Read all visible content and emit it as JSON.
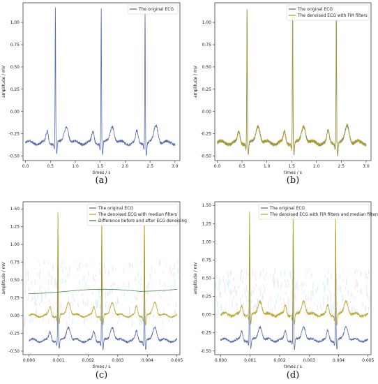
{
  "colors": {
    "original": "#4c63a8",
    "denoised": "#b5a11c",
    "difference": "#2e7d32",
    "noise_tint": "#ff66cc",
    "cyan_tint": "#00c8dc"
  },
  "chart_data": [
    {
      "panel": "a",
      "type": "line",
      "caption": "(a)",
      "xlabel": "times / s",
      "ylabel": "amplitude / mV",
      "xlim": [
        -0.05,
        3.1
      ],
      "ylim": [
        -0.55,
        1.22
      ],
      "xticks": [
        "0.0",
        "0.5",
        "1.0",
        "1.5",
        "2.0",
        "2.5",
        "3.0"
      ],
      "xtick_values": [
        0.0,
        0.5,
        1.0,
        1.5,
        2.0,
        2.5,
        3.0
      ],
      "yticks": [
        "-0.50",
        "-0.25",
        "0.00",
        "0.25",
        "0.50",
        "0.75",
        "1.00"
      ],
      "ytick_values": [
        -0.5,
        -0.25,
        0.0,
        0.25,
        0.5,
        0.75,
        1.0
      ],
      "legend_position": "top-right",
      "beats": [
        0.6,
        1.52,
        2.4
      ],
      "series": [
        {
          "name": "The original ECG",
          "color_key": "original",
          "baseline": -0.35,
          "peak": 1.16,
          "noise": 0.015
        }
      ]
    },
    {
      "panel": "b",
      "type": "line",
      "caption": "(b)",
      "xlabel": "times / s",
      "ylabel": "amplitude / mV",
      "xlim": [
        -0.05,
        3.1
      ],
      "ylim": [
        -0.55,
        1.22
      ],
      "xticks": [
        "0.0",
        "0.5",
        "1.0",
        "1.5",
        "2.0",
        "2.5",
        "3.0"
      ],
      "xtick_values": [
        0.0,
        0.5,
        1.0,
        1.5,
        2.0,
        2.5,
        3.0
      ],
      "yticks": [
        "-0.50",
        "-0.25",
        "0.00",
        "0.25",
        "0.50",
        "0.75",
        "1.00"
      ],
      "ytick_values": [
        -0.5,
        -0.25,
        0.0,
        0.25,
        0.5,
        0.75,
        1.0
      ],
      "legend_position": "top-right",
      "beats": [
        0.6,
        1.52,
        2.4
      ],
      "series": [
        {
          "name": "The original ECG",
          "color_key": "original",
          "baseline": -0.35,
          "peak": 1.16,
          "noise": 0.015
        },
        {
          "name": "The denoised ECG with FIR filters",
          "color_key": "denoised",
          "baseline": -0.35,
          "peak": 1.16,
          "noise": 0.02
        }
      ]
    },
    {
      "panel": "c",
      "type": "line",
      "caption": "(c)",
      "xlabel": "times / s",
      "ylabel": "amplitude / mV",
      "xlim": [
        -0.0002,
        0.0051
      ],
      "ylim": [
        -0.55,
        1.6
      ],
      "xticks": [
        "0.000",
        "0.001",
        "0.002",
        "0.003",
        "0.004",
        "0.005"
      ],
      "xtick_values": [
        0.0,
        0.001,
        0.002,
        0.003,
        0.004,
        0.005
      ],
      "yticks": [
        "-0.50",
        "-0.25",
        "0.00",
        "0.25",
        "0.50",
        "0.75",
        "1.00",
        "1.25",
        "1.50"
      ],
      "ytick_values": [
        -0.5,
        -0.25,
        0.0,
        0.25,
        0.5,
        0.75,
        1.0,
        1.25,
        1.5
      ],
      "legend_position": "top-right",
      "beats": [
        0.00098,
        0.00246,
        0.0039
      ],
      "series": [
        {
          "name": "The original ECG",
          "color_key": "original",
          "baseline": -0.35,
          "peak": 1.15,
          "noise": 0.015
        },
        {
          "name": "The denoised ECG with median filters",
          "color_key": "denoised",
          "baseline": 0.0,
          "peak": 1.5,
          "noise": 0.012
        },
        {
          "name": "Difference before and after ECG denoising",
          "color_key": "difference",
          "baseline": 0.34,
          "peak": 0.34,
          "noise": 0.0
        }
      ]
    },
    {
      "panel": "d",
      "type": "line",
      "caption": "(d)",
      "xlabel": "times / s",
      "ylabel": "amplitude / mV",
      "xlim": [
        -0.0002,
        0.0051
      ],
      "ylim": [
        -0.55,
        1.55
      ],
      "xticks": [
        "0.000",
        "0.001",
        "0.002",
        "0.003",
        "0.004",
        "0.005"
      ],
      "xtick_values": [
        0.0,
        0.001,
        0.002,
        0.003,
        0.004,
        0.005
      ],
      "yticks": [
        "-0.50",
        "-0.25",
        "0.00",
        "0.25",
        "0.50",
        "0.75",
        "1.00",
        "1.25",
        "1.50"
      ],
      "ytick_values": [
        -0.5,
        -0.25,
        0.0,
        0.25,
        0.5,
        0.75,
        1.0,
        1.25,
        1.5
      ],
      "legend_position": "top-right",
      "beats": [
        0.00098,
        0.00246,
        0.0039
      ],
      "series": [
        {
          "name": "The original ECG",
          "color_key": "original",
          "baseline": -0.35,
          "peak": 1.15,
          "noise": 0.015
        },
        {
          "name": "The denoised ECG with FIR filters and median filters",
          "color_key": "denoised",
          "baseline": 0.0,
          "peak": 1.45,
          "noise": 0.02
        }
      ]
    }
  ]
}
